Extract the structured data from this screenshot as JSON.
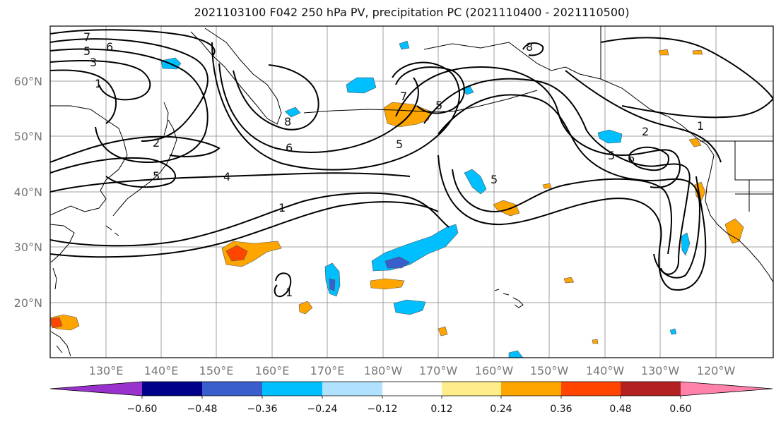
{
  "title": "2021103100 F042 250 hPa PV, precipitation PC (2021110400 - 2021110500)",
  "map": {
    "lat_labels": [
      "60°N",
      "50°N",
      "40°N",
      "30°N",
      "20°N"
    ],
    "lon_labels": [
      "130°E",
      "140°E",
      "150°E",
      "160°E",
      "170°E",
      "180°W",
      "170°W",
      "160°W",
      "150°W",
      "140°W",
      "130°W",
      "120°W"
    ],
    "contour_labels": [
      "7",
      "6",
      "5",
      "3",
      "1",
      "2",
      "5",
      "4",
      "1",
      "8",
      "6",
      "5",
      "7",
      "5",
      "8",
      "5",
      "5",
      "6",
      "2",
      "1",
      "1"
    ],
    "contour_color": "#000000",
    "coast_color": "#000000",
    "grid_color": "#a0a0a0"
  },
  "colorbar": {
    "tick_labels": [
      "−0.60",
      "−0.48",
      "−0.36",
      "−0.24",
      "−0.12",
      "0.12",
      "0.24",
      "0.36",
      "0.48",
      "0.60"
    ],
    "colors": [
      "#9932cc",
      "#00008b",
      "#3a5fcd",
      "#00bfff",
      "#b0e2ff",
      "#ffffff",
      "#ffec8b",
      "#ffa500",
      "#ff4500",
      "#b22222",
      "#ff82ab"
    ]
  }
}
